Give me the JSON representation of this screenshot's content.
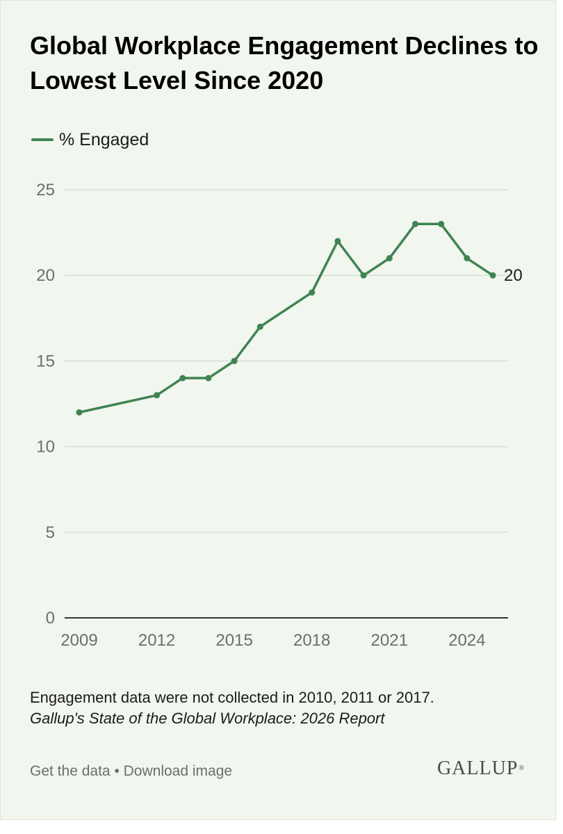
{
  "header": {
    "title": "Global Workplace Engagement Declines to Lowest Level Since 2020"
  },
  "legend": {
    "label": "% Engaged"
  },
  "chart_data": {
    "type": "line",
    "title": "Global Workplace Engagement Declines to Lowest Level Since 2020",
    "xlabel": "",
    "ylabel": "",
    "xlim": [
      2009,
      2025
    ],
    "ylim": [
      0,
      25
    ],
    "y_ticks": [
      0,
      5,
      10,
      15,
      20,
      25
    ],
    "x_ticks": [
      2009,
      2012,
      2015,
      2018,
      2021,
      2024
    ],
    "grid": true,
    "legend_position": "top-left",
    "series": [
      {
        "name": "% Engaged",
        "color": "#3f8451",
        "points": [
          {
            "x": 2009,
            "y": 12
          },
          {
            "x": 2012,
            "y": 13
          },
          {
            "x": 2013,
            "y": 14
          },
          {
            "x": 2014,
            "y": 14
          },
          {
            "x": 2015,
            "y": 15
          },
          {
            "x": 2016,
            "y": 17
          },
          {
            "x": 2018,
            "y": 19
          },
          {
            "x": 2019,
            "y": 22
          },
          {
            "x": 2020,
            "y": 20
          },
          {
            "x": 2021,
            "y": 21
          },
          {
            "x": 2022,
            "y": 23
          },
          {
            "x": 2023,
            "y": 23
          },
          {
            "x": 2024,
            "y": 21
          },
          {
            "x": 2025,
            "y": 20
          }
        ],
        "end_label": "20"
      }
    ]
  },
  "notes": {
    "data_note": "Engagement data were not collected in 2010, 2011 or 2017.",
    "source": "Gallup's State of the Global Workplace: 2026 Report"
  },
  "footer": {
    "get_data": "Get the data",
    "separator": "•",
    "download_image": "Download image",
    "logo": "GALLUP",
    "logo_mark": "®"
  },
  "colors": {
    "accent": "#3f8451",
    "background": "#f1f6ef",
    "gridline": "#d9ddd8",
    "axis": "#333333",
    "muted_text": "#6d6d6d"
  }
}
